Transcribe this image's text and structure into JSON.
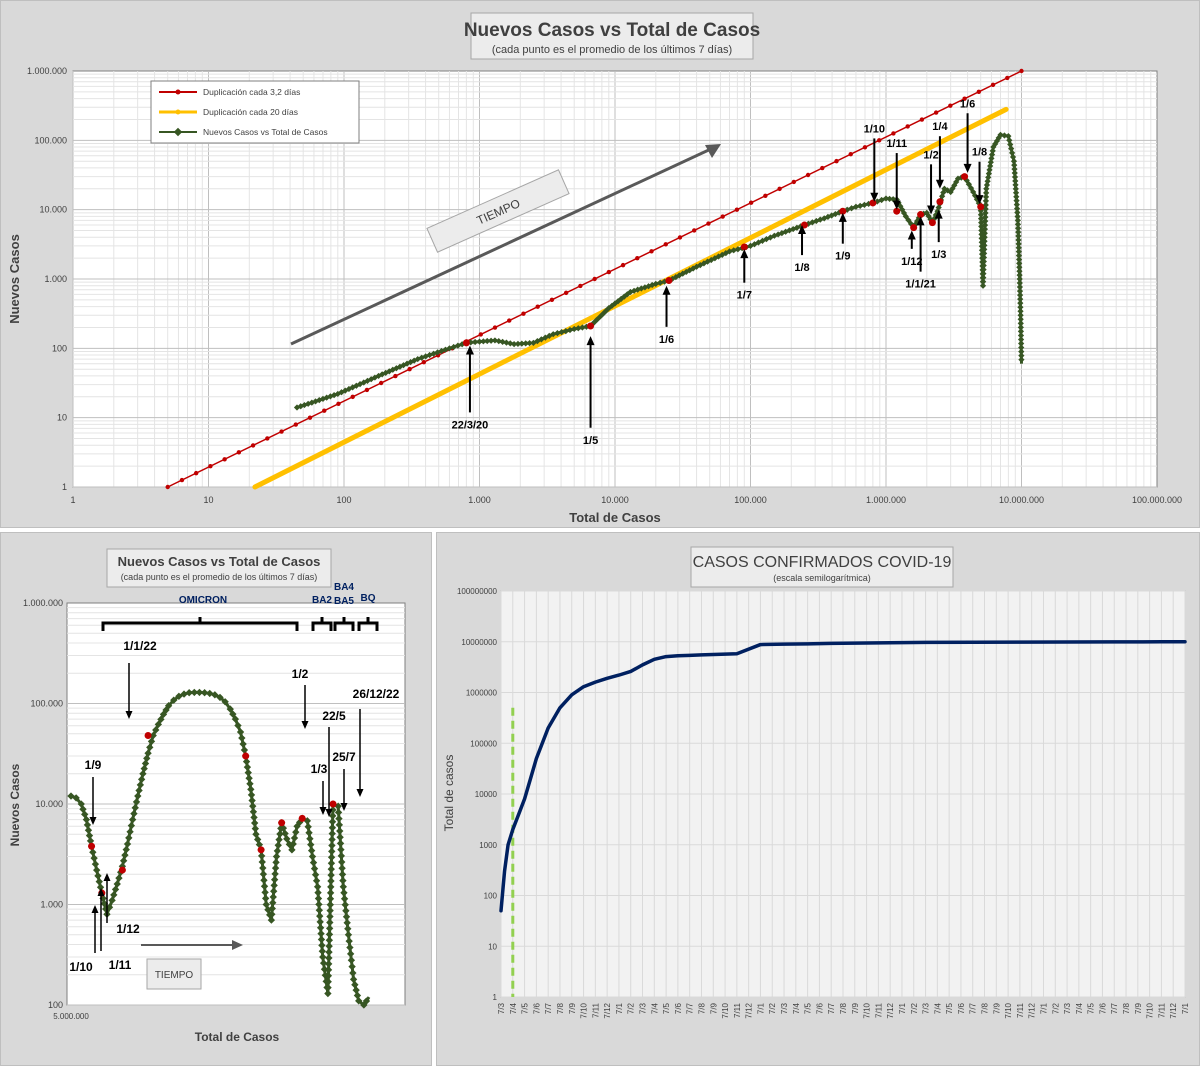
{
  "colors": {
    "red": "#c00000",
    "yellow": "#ffc000",
    "green": "#375623",
    "navy": "#002060",
    "arrow": "#595959",
    "dash": "#92d050"
  },
  "chart_data": [
    {
      "type": "line",
      "scale": "log-log",
      "title": "Nuevos Casos vs Total de Casos",
      "subtitle": "(cada punto  es el promedio  de los últimos  7 días)",
      "xlabel": "Total de Casos",
      "ylabel": "Nuevos Casos",
      "xlim": [
        1,
        100000000
      ],
      "ylim": [
        1,
        1000000
      ],
      "x_ticks": [
        "1",
        "10",
        "100",
        "1.000",
        "10.000",
        "100.000",
        "1.000.000",
        "10.000.000",
        "100.000.000"
      ],
      "y_ticks": [
        "1",
        "10",
        "100",
        "1.000",
        "10.000",
        "100.000",
        "1.000.000"
      ],
      "legend": {
        "position": "top-left",
        "entries": [
          "Duplicación cada 3,2 días",
          "Duplicación cada 20 días",
          "Nuevos Casos vs Total de Casos"
        ]
      },
      "tiempo_label": "TIEMPO",
      "series": [
        {
          "name": "Duplicación cada 3,2 días",
          "color_key": "red",
          "x": [
            5,
            10000000
          ],
          "y": [
            1,
            1000000
          ]
        },
        {
          "name": "Duplicación cada 20 días",
          "color_key": "yellow",
          "x": [
            22,
            7700000
          ],
          "y": [
            1,
            280000
          ]
        },
        {
          "name": "Nuevos Casos vs Total de Casos",
          "color_key": "green",
          "x": [
            45,
            90,
            180,
            350,
            600,
            800,
            1000,
            1300,
            1800,
            2500,
            3500,
            5000,
            6600,
            9000,
            13000,
            20000,
            25000,
            40000,
            70000,
            100000,
            150000,
            250000,
            350000,
            480000,
            600000,
            800000,
            1000000,
            1200000,
            1400000,
            1600000,
            1800000,
            2000000,
            2200000,
            2400000,
            2700000,
            3000000,
            3400000,
            3800000,
            4400000,
            5000000,
            5200000,
            5500000,
            6200000,
            7000000,
            8000000,
            8800000,
            9400000,
            9700000,
            9850000,
            10000000
          ],
          "y": [
            14,
            22,
            40,
            70,
            100,
            120,
            125,
            130,
            115,
            120,
            160,
            190,
            210,
            380,
            650,
            850,
            950,
            1500,
            2500,
            3000,
            4200,
            6000,
            7500,
            9500,
            11000,
            12500,
            14500,
            14000,
            8000,
            5500,
            8500,
            9000,
            6500,
            9500,
            20000,
            18000,
            28000,
            30000,
            18000,
            11000,
            800,
            20000,
            80000,
            120000,
            115000,
            50000,
            7000,
            1000,
            300,
            60
          ]
        }
      ],
      "highlights": [
        {
          "x": 800,
          "y": 120
        },
        {
          "x": 6600,
          "y": 210
        },
        {
          "x": 25000,
          "y": 950
        },
        {
          "x": 90000,
          "y": 2900
        },
        {
          "x": 250000,
          "y": 6000
        },
        {
          "x": 480000,
          "y": 9500
        },
        {
          "x": 800000,
          "y": 12500
        },
        {
          "x": 1200000,
          "y": 9500
        },
        {
          "x": 1600000,
          "y": 5500
        },
        {
          "x": 1800000,
          "y": 8500
        },
        {
          "x": 2200000,
          "y": 6500
        },
        {
          "x": 2500000,
          "y": 13000
        },
        {
          "x": 3800000,
          "y": 30000
        },
        {
          "x": 5000000,
          "y": 11000
        }
      ],
      "annotations": [
        {
          "text": "22/3/20",
          "x": 850,
          "y_label": 7,
          "tip": 110,
          "dir": "up"
        },
        {
          "text": "1/5",
          "x": 6600,
          "y_label": 4.2,
          "tip": 150,
          "dir": "up"
        },
        {
          "text": "1/6",
          "x": 24000,
          "y_label": 120,
          "tip": 800,
          "dir": "up"
        },
        {
          "text": "1/7",
          "x": 90000,
          "y_label": 520,
          "tip": 2700,
          "dir": "up"
        },
        {
          "text": "1/8",
          "x": 240000,
          "y_label": 1300,
          "tip": 6000,
          "dir": "up"
        },
        {
          "text": "1/9",
          "x": 480000,
          "y_label": 1900,
          "tip": 9000,
          "dir": "up"
        },
        {
          "text": "1/10",
          "x": 820000,
          "y_label": 130000,
          "tip": 13000,
          "dir": "down"
        },
        {
          "text": "1/11",
          "x": 1200000,
          "y_label": 80000,
          "tip": 10000,
          "dir": "down"
        },
        {
          "text": "1/12",
          "x": 1550000,
          "y_label": 1600,
          "tip": 5000,
          "dir": "up"
        },
        {
          "text": "1/1/21",
          "x": 1800000,
          "y_label": 750,
          "tip": 8000,
          "dir": "up"
        },
        {
          "text": "1/2",
          "x": 2150000,
          "y_label": 55000,
          "tip": 8500,
          "dir": "down"
        },
        {
          "text": "1/3",
          "x": 2450000,
          "y_label": 2000,
          "tip": 10000,
          "dir": "up"
        },
        {
          "text": "1/4",
          "x": 2500000,
          "y_label": 140000,
          "tip": 20000,
          "dir": "down"
        },
        {
          "text": "1/6",
          "x": 4000000,
          "y_label": 300000,
          "tip": 34000,
          "dir": "down"
        },
        {
          "text": "1/8",
          "x": 4900000,
          "y_label": 60000,
          "tip": 12000,
          "dir": "down"
        }
      ]
    },
    {
      "type": "line",
      "title": "Nuevos Casos vs Total de Casos",
      "subtitle": "(cada punto es el promedio de los últimos 7 días)",
      "xlabel": "Total de Casos",
      "ylabel": "Nuevos Casos",
      "x_tick": "5.000.000",
      "y_ticks": [
        "100",
        "1.000",
        "10.000",
        "100.000",
        "1.000.000"
      ],
      "ylim": [
        100,
        1000000
      ],
      "tiempo_label": "TIEMPO",
      "brackets": [
        {
          "label": "OMICRON"
        },
        {
          "label": "BA2"
        },
        {
          "label": "BA4"
        },
        {
          "label": "BA5"
        },
        {
          "label": "BQ"
        }
      ],
      "series": [
        {
          "name": "Nuevos Casos vs Total de Casos",
          "color_key": "green",
          "y": [
            12000,
            11500,
            10000,
            7000,
            3800,
            2200,
            1300,
            800,
            1100,
            1600,
            2400,
            4000,
            7000,
            12000,
            20000,
            32000,
            48000,
            62000,
            78000,
            95000,
            108000,
            118000,
            124000,
            128000,
            129000,
            129000,
            128000,
            126000,
            122000,
            115000,
            104000,
            88000,
            70000,
            52000,
            30000,
            14000,
            5000,
            3500,
            1000,
            700,
            3000,
            6500,
            4500,
            3500,
            6000,
            7200,
            6800,
            3000,
            1500,
            300,
            130,
            10000,
            9500,
            1500,
            500,
            180,
            110,
            100,
            120
          ]
        }
      ],
      "highlights": [
        3800,
        1300,
        2200,
        48000,
        30000,
        3500,
        6500,
        7200,
        10000
      ],
      "annotations": [
        {
          "text": "1/9"
        },
        {
          "text": "1/10"
        },
        {
          "text": "1/11"
        },
        {
          "text": "1/12"
        },
        {
          "text": "1/1/22"
        },
        {
          "text": "1/2"
        },
        {
          "text": "1/3"
        },
        {
          "text": "22/5"
        },
        {
          "text": "25/7"
        },
        {
          "text": "26/12/22"
        }
      ]
    },
    {
      "type": "line",
      "scale": "semilog-y",
      "title": "CASOS CONFIRMADOS COVID-19",
      "subtitle": "(escala semilogarítmica)",
      "xlabel": "",
      "ylabel": "Total de casos",
      "ylim": [
        1,
        100000000
      ],
      "y_ticks": [
        "1",
        "10",
        "100",
        "1000",
        "10000",
        "100000",
        "1000000",
        "10000000",
        "100000000"
      ],
      "x_ticks": [
        "7/3",
        "7/4",
        "7/5",
        "7/6",
        "7/7",
        "7/8",
        "7/9",
        "7/10",
        "7/11",
        "7/12",
        "7/1",
        "7/2",
        "7/3",
        "7/4",
        "7/5",
        "7/6",
        "7/7",
        "7/8",
        "7/9",
        "7/10",
        "7/11",
        "7/12",
        "7/1",
        "7/2",
        "7/3",
        "7/4",
        "7/5",
        "7/6",
        "7/7",
        "7/8",
        "7/9",
        "7/10",
        "7/11",
        "7/12",
        "7/1",
        "7/2",
        "7/3",
        "7/4",
        "7/5",
        "7/6",
        "7/7",
        "7/8",
        "7/9",
        "7/10",
        "7/11",
        "7/12",
        "7/1",
        "7/2",
        "7/3",
        "7/4",
        "7/5",
        "7/6",
        "7/7",
        "7/8",
        "7/9",
        "7/10",
        "7/11",
        "7/12",
        "7/1"
      ],
      "marker_index": 1,
      "series": [
        {
          "name": "Total de casos",
          "color_key": "navy",
          "x_month_index": [
            0,
            0.3,
            0.6,
            1,
            1.5,
            2,
            2.5,
            3,
            3.5,
            4,
            5,
            6,
            7,
            8,
            9,
            10,
            11,
            12,
            13,
            14,
            15,
            16,
            17,
            18,
            20,
            22,
            24,
            26,
            27,
            28,
            30,
            32,
            34,
            36,
            40,
            44,
            48,
            52,
            56,
            58
          ],
          "y": [
            50,
            300,
            1000,
            2000,
            4000,
            8000,
            20000,
            50000,
            100000,
            200000,
            500000,
            900000,
            1300000,
            1600000,
            1900000,
            2200000,
            2600000,
            3500000,
            4500000,
            5100000,
            5300000,
            5400000,
            5500000,
            5600000,
            5800000,
            8800000,
            9000000,
            9100000,
            9200000,
            9300000,
            9400000,
            9500000,
            9600000,
            9700000,
            9800000,
            9850000,
            9900000,
            9950000,
            9980000,
            10000000
          ]
        }
      ]
    }
  ]
}
